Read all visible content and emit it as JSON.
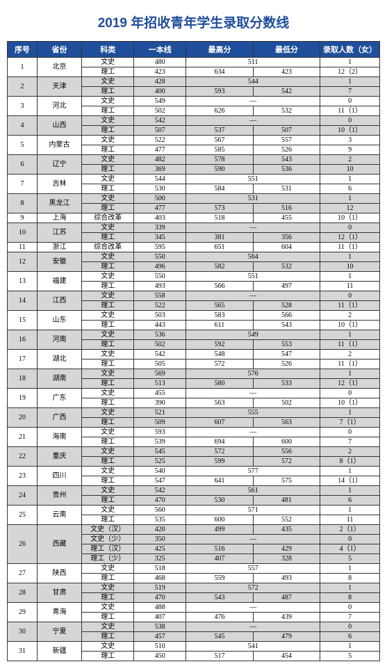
{
  "title": "2019 年招收青年学生录取分数线",
  "style": {
    "title_color": "#1f4e9b",
    "title_fontsize": 19,
    "header_bg": "#1f4e9b",
    "header_fontsize": 11,
    "cell_fontsize": 10,
    "row_alt_bg": "#d6d6d6",
    "row_bg": "#ffffff",
    "col_widths_pct": [
      8,
      12,
      14,
      14,
      18,
      18,
      16
    ]
  },
  "columns": [
    "序号",
    "省份",
    "科类",
    "一本线",
    "最高分",
    "最低分",
    "录取人数（女）"
  ],
  "rows": [
    {
      "no": 1,
      "prov": "北京",
      "alt": false,
      "subj": "文史",
      "line": "480",
      "hi": "511",
      "lo": "__SPAN__",
      "cnt": "1"
    },
    {
      "subj": "理工",
      "line": "423",
      "hi": "634",
      "lo": "423",
      "cnt": "12（2）"
    },
    {
      "no": 2,
      "prov": "天津",
      "alt": true,
      "subj": "文史",
      "line": "428",
      "hi": "544",
      "lo": "__SPAN__",
      "cnt": "1"
    },
    {
      "subj": "理工",
      "line": "400",
      "hi": "593",
      "lo": "542",
      "cnt": "7"
    },
    {
      "no": 3,
      "prov": "河北",
      "alt": false,
      "subj": "文史",
      "line": "549",
      "hi": "—",
      "lo": "__SPAN__",
      "cnt": "0"
    },
    {
      "subj": "理工",
      "line": "502",
      "hi": "626",
      "lo": "532",
      "cnt": "11（1）"
    },
    {
      "no": 4,
      "prov": "山西",
      "alt": true,
      "subj": "文史",
      "line": "542",
      "hi": "—",
      "lo": "__SPAN__",
      "cnt": "0"
    },
    {
      "subj": "理工",
      "line": "507",
      "hi": "537",
      "lo": "507",
      "cnt": "10（1）"
    },
    {
      "no": 5,
      "prov": "内蒙古",
      "alt": false,
      "subj": "文史",
      "line": "522",
      "hi": "567",
      "lo": "557",
      "cnt": "3"
    },
    {
      "subj": "理工",
      "line": "477",
      "hi": "585",
      "lo": "526",
      "cnt": "9"
    },
    {
      "no": 6,
      "prov": "辽宁",
      "alt": true,
      "subj": "文史",
      "line": "482",
      "hi": "578",
      "lo": "543",
      "cnt": "2"
    },
    {
      "subj": "理工",
      "line": "369",
      "hi": "590",
      "lo": "536",
      "cnt": "10"
    },
    {
      "no": 7,
      "prov": "吉林",
      "alt": false,
      "subj": "文史",
      "line": "544",
      "hi": "551",
      "lo": "__SPAN__",
      "cnt": "1"
    },
    {
      "subj": "理工",
      "line": "530",
      "hi": "584",
      "lo": "531",
      "cnt": "6"
    },
    {
      "no": 8,
      "prov": "黑龙江",
      "alt": true,
      "subj": "文史",
      "line": "500",
      "hi": "531",
      "lo": "__SPAN__",
      "cnt": "1"
    },
    {
      "subj": "理工",
      "line": "477",
      "hi": "573",
      "lo": "516",
      "cnt": "12"
    },
    {
      "no": 9,
      "prov": "上海",
      "alt": false,
      "onerow": true,
      "subj": "综合改革",
      "line": "403",
      "hi": "518",
      "lo": "455",
      "cnt": "10（1）"
    },
    {
      "no": 10,
      "prov": "江苏",
      "alt": true,
      "subj": "文史",
      "line": "339",
      "hi": "—",
      "lo": "__SPAN__",
      "cnt": "0"
    },
    {
      "subj": "理工",
      "line": "345",
      "hi": "381",
      "lo": "356",
      "cnt": "12（1）"
    },
    {
      "no": 11,
      "prov": "浙江",
      "alt": false,
      "onerow": true,
      "subj": "综合改革",
      "line": "595",
      "hi": "651",
      "lo": "604",
      "cnt": "11（1）"
    },
    {
      "no": 12,
      "prov": "安徽",
      "alt": true,
      "subj": "文史",
      "line": "550",
      "hi": "564",
      "lo": "__SPAN__",
      "cnt": "1"
    },
    {
      "subj": "理工",
      "line": "496",
      "hi": "582",
      "lo": "532",
      "cnt": "10"
    },
    {
      "no": 13,
      "prov": "福建",
      "alt": false,
      "subj": "文史",
      "line": "550",
      "hi": "551",
      "lo": "__SPAN__",
      "cnt": "1"
    },
    {
      "subj": "理工",
      "line": "493",
      "hi": "566",
      "lo": "497",
      "cnt": "11"
    },
    {
      "no": 14,
      "prov": "江西",
      "alt": true,
      "subj": "文史",
      "line": "558",
      "hi": "—",
      "lo": "__SPAN__",
      "cnt": "0"
    },
    {
      "subj": "理工",
      "line": "522",
      "hi": "565",
      "lo": "528",
      "cnt": "11（1）"
    },
    {
      "no": 15,
      "prov": "山东",
      "alt": false,
      "subj": "文史",
      "line": "503",
      "hi": "583",
      "lo": "566",
      "cnt": "2"
    },
    {
      "subj": "理工",
      "line": "443",
      "hi": "611",
      "lo": "543",
      "cnt": "10（1）"
    },
    {
      "no": 16,
      "prov": "河南",
      "alt": true,
      "subj": "文史",
      "line": "536",
      "hi": "549",
      "lo": "__SPAN__",
      "cnt": "1"
    },
    {
      "subj": "理工",
      "line": "502",
      "hi": "592",
      "lo": "553",
      "cnt": "11（1）"
    },
    {
      "no": 17,
      "prov": "湖北",
      "alt": false,
      "subj": "文史",
      "line": "542",
      "hi": "548",
      "lo": "547",
      "cnt": "2"
    },
    {
      "subj": "理工",
      "line": "505",
      "hi": "572",
      "lo": "526",
      "cnt": "11（1）"
    },
    {
      "no": 18,
      "prov": "湖南",
      "alt": true,
      "subj": "文史",
      "line": "569",
      "hi": "576",
      "lo": "__SPAN__",
      "cnt": "1"
    },
    {
      "subj": "理工",
      "line": "513",
      "hi": "580",
      "lo": "533",
      "cnt": "12（1）"
    },
    {
      "no": 19,
      "prov": "广东",
      "alt": false,
      "subj": "文史",
      "line": "455",
      "hi": "—",
      "lo": "__SPAN__",
      "cnt": "0"
    },
    {
      "subj": "理工",
      "line": "390",
      "hi": "563",
      "lo": "502",
      "cnt": "10（1）"
    },
    {
      "no": 20,
      "prov": "广西",
      "alt": true,
      "subj": "文史",
      "line": "521",
      "hi": "555",
      "lo": "__SPAN__",
      "cnt": "1"
    },
    {
      "subj": "理工",
      "line": "509",
      "hi": "607",
      "lo": "563",
      "cnt": "7（1）"
    },
    {
      "no": 21,
      "prov": "海南",
      "alt": false,
      "subj": "文史",
      "line": "593",
      "hi": "—",
      "lo": "__SPAN__",
      "cnt": "0"
    },
    {
      "subj": "理工",
      "line": "539",
      "hi": "694",
      "lo": "600",
      "cnt": "7"
    },
    {
      "no": 22,
      "prov": "重庆",
      "alt": true,
      "subj": "文史",
      "line": "545",
      "hi": "572",
      "lo": "556",
      "cnt": "2"
    },
    {
      "subj": "理工",
      "line": "525",
      "hi": "599",
      "lo": "572",
      "cnt": "8（1）"
    },
    {
      "no": 23,
      "prov": "四川",
      "alt": false,
      "subj": "文史",
      "line": "540",
      "hi": "577",
      "lo": "__SPAN__",
      "cnt": "1"
    },
    {
      "subj": "理工",
      "line": "547",
      "hi": "641",
      "lo": "575",
      "cnt": "14（1）"
    },
    {
      "no": 24,
      "prov": "贵州",
      "alt": true,
      "subj": "文史",
      "line": "542",
      "hi": "561",
      "lo": "__SPAN__",
      "cnt": "1"
    },
    {
      "subj": "理工",
      "line": "470",
      "hi": "530",
      "lo": "481",
      "cnt": "6"
    },
    {
      "no": 25,
      "prov": "云南",
      "alt": false,
      "subj": "文史",
      "line": "560",
      "hi": "571",
      "lo": "__SPAN__",
      "cnt": "1"
    },
    {
      "subj": "理工",
      "line": "535",
      "hi": "600",
      "lo": "552",
      "cnt": "11"
    },
    {
      "no": 26,
      "prov": "西藏",
      "alt": true,
      "rowspan": 4,
      "subj": "文史（汉）",
      "line": "420",
      "hi": "499",
      "lo": "435",
      "cnt": "2（1）"
    },
    {
      "subj": "文史（少）",
      "line": "350",
      "hi": "—",
      "lo": "__SPAN__",
      "cnt": "0"
    },
    {
      "subj": "理工（汉）",
      "line": "425",
      "hi": "516",
      "lo": "429",
      "cnt": "4（1）"
    },
    {
      "subj": "理工（少）",
      "line": "325",
      "hi": "407",
      "lo": "328",
      "cnt": "5"
    },
    {
      "no": 27,
      "prov": "陕西",
      "alt": false,
      "subj": "文史",
      "line": "518",
      "hi": "557",
      "lo": "__SPAN__",
      "cnt": "1"
    },
    {
      "subj": "理工",
      "line": "468",
      "hi": "559",
      "lo": "493",
      "cnt": "8"
    },
    {
      "no": 28,
      "prov": "甘肃",
      "alt": true,
      "subj": "文史",
      "line": "519",
      "hi": "572",
      "lo": "__SPAN__",
      "cnt": "1"
    },
    {
      "subj": "理工",
      "line": "470",
      "hi": "543",
      "lo": "487",
      "cnt": "8"
    },
    {
      "no": 29,
      "prov": "青海",
      "alt": false,
      "subj": "文史",
      "line": "488",
      "hi": "—",
      "lo": "__SPAN__",
      "cnt": "0"
    },
    {
      "subj": "理工",
      "line": "407",
      "hi": "476",
      "lo": "439",
      "cnt": "7"
    },
    {
      "no": 30,
      "prov": "宁夏",
      "alt": true,
      "subj": "文史",
      "line": "538",
      "hi": "—",
      "lo": "__SPAN__",
      "cnt": "0"
    },
    {
      "subj": "理工",
      "line": "457",
      "hi": "545",
      "lo": "479",
      "cnt": "6"
    },
    {
      "no": 31,
      "prov": "新疆",
      "alt": false,
      "subj": "文史",
      "line": "510",
      "hi": "541",
      "lo": "__SPAN__",
      "cnt": "1"
    },
    {
      "subj": "理工",
      "line": "450",
      "hi": "517",
      "lo": "454",
      "cnt": "5"
    }
  ]
}
